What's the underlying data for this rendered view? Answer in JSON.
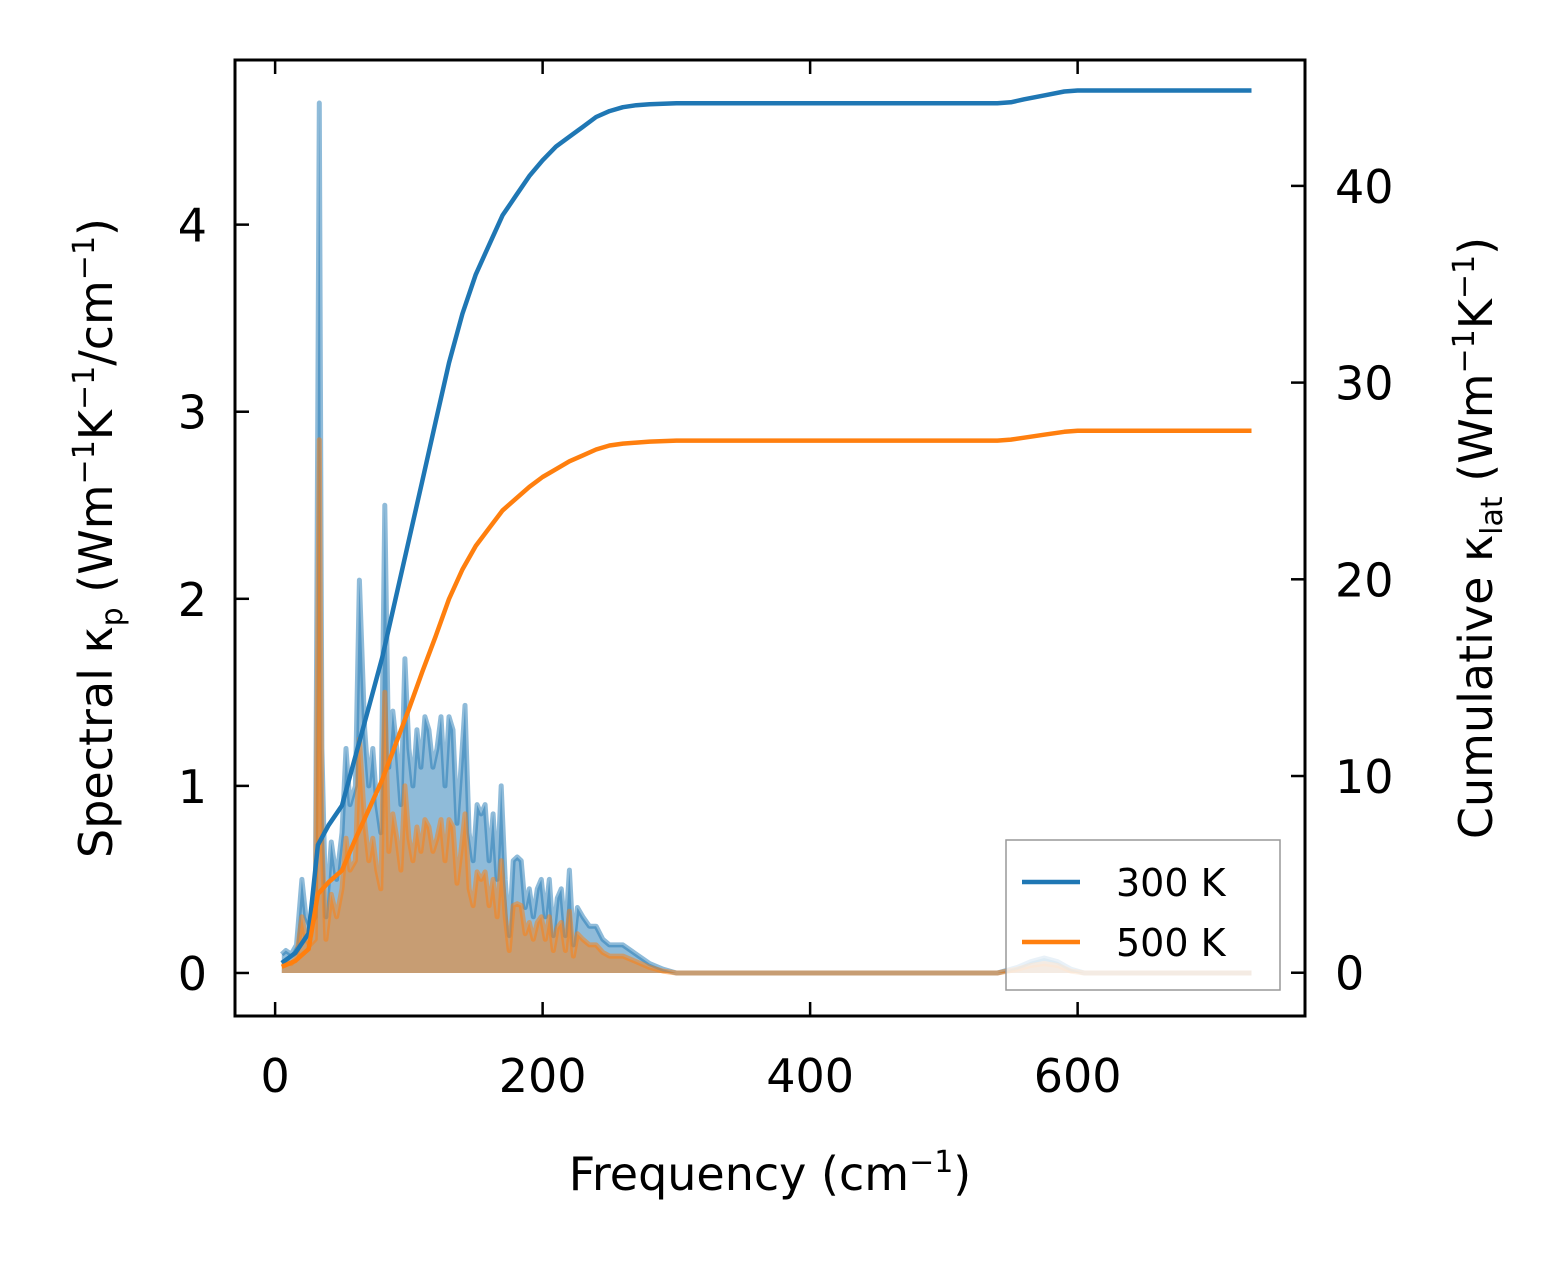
{
  "chart_data": {
    "type": "line",
    "xlabel": "Frequency (cm",
    "xlabel_sup": "−1",
    "xlabel_end": ")",
    "ylabel_left": {
      "a": "Spectral κ",
      "sub": "p",
      "b": " (Wm",
      "sup1": "−1",
      "c": "K",
      "sup2": "−1",
      "d": "/cm",
      "sup3": "−1",
      "e": ")"
    },
    "ylabel_right": {
      "a": "Cumulative κ",
      "sub": "lat",
      "b": " (Wm",
      "sup1": "−1",
      "c": "K",
      "sup2": "−1",
      "d": ")"
    },
    "xlim": [
      -30,
      770
    ],
    "ylim_left": [
      -0.23,
      4.88
    ],
    "ylim_right": [
      -2.2,
      46.4
    ],
    "x_ticks": [
      "0",
      "200",
      "400",
      "600"
    ],
    "y_left_ticks": [
      "0",
      "1",
      "2",
      "3",
      "4"
    ],
    "y_right_ticks": [
      "0",
      "10",
      "20",
      "30",
      "40"
    ],
    "legend_position": "lower-right",
    "colors": {
      "s300": "#1f77b4",
      "s500": "#ff7f0e",
      "fill300": "#1f77b4",
      "fill500": "#ff7f0e"
    },
    "series": [
      {
        "name": "300 K",
        "spectral": [
          [
            5,
            0.1
          ],
          [
            8,
            0.12
          ],
          [
            12,
            0.1
          ],
          [
            16,
            0.15
          ],
          [
            20,
            0.5
          ],
          [
            23,
            0.3
          ],
          [
            26,
            0.25
          ],
          [
            30,
            0.3
          ],
          [
            33,
            4.65
          ],
          [
            35,
            1.2
          ],
          [
            38,
            0.3
          ],
          [
            42,
            0.7
          ],
          [
            46,
            0.5
          ],
          [
            50,
            0.75
          ],
          [
            53,
            1.2
          ],
          [
            56,
            0.9
          ],
          [
            60,
            1.0
          ],
          [
            63,
            2.1
          ],
          [
            67,
            1.3
          ],
          [
            70,
            1.0
          ],
          [
            73,
            1.2
          ],
          [
            76,
            0.9
          ],
          [
            79,
            0.75
          ],
          [
            82,
            2.5
          ],
          [
            85,
            1.1
          ],
          [
            88,
            1.4
          ],
          [
            91,
            1.2
          ],
          [
            94,
            0.9
          ],
          [
            97,
            1.68
          ],
          [
            100,
            1.2
          ],
          [
            103,
            1.0
          ],
          [
            106,
            1.3
          ],
          [
            109,
            1.1
          ],
          [
            112,
            1.37
          ],
          [
            115,
            1.3
          ],
          [
            118,
            1.1
          ],
          [
            121,
            1.2
          ],
          [
            124,
            1.37
          ],
          [
            127,
            1.0
          ],
          [
            130,
            1.37
          ],
          [
            133,
            1.3
          ],
          [
            136,
            0.8
          ],
          [
            139,
            1.1
          ],
          [
            142,
            1.43
          ],
          [
            145,
            0.75
          ],
          [
            148,
            0.6
          ],
          [
            151,
            0.9
          ],
          [
            154,
            0.85
          ],
          [
            157,
            0.9
          ],
          [
            160,
            0.6
          ],
          [
            163,
            0.85
          ],
          [
            166,
            0.5
          ],
          [
            169,
            1.0
          ],
          [
            172,
            0.5
          ],
          [
            175,
            0.2
          ],
          [
            178,
            0.6
          ],
          [
            181,
            0.62
          ],
          [
            184,
            0.6
          ],
          [
            187,
            0.35
          ],
          [
            190,
            0.45
          ],
          [
            193,
            0.3
          ],
          [
            196,
            0.45
          ],
          [
            199,
            0.5
          ],
          [
            202,
            0.3
          ],
          [
            205,
            0.5
          ],
          [
            208,
            0.2
          ],
          [
            211,
            0.4
          ],
          [
            214,
            0.45
          ],
          [
            217,
            0.2
          ],
          [
            220,
            0.55
          ],
          [
            223,
            0.15
          ],
          [
            226,
            0.35
          ],
          [
            230,
            0.3
          ],
          [
            235,
            0.25
          ],
          [
            240,
            0.25
          ],
          [
            245,
            0.18
          ],
          [
            250,
            0.15
          ],
          [
            260,
            0.15
          ],
          [
            270,
            0.1
          ],
          [
            280,
            0.05
          ],
          [
            290,
            0.02
          ],
          [
            300,
            0.0
          ],
          [
            400,
            0.0
          ],
          [
            540,
            0.0
          ],
          [
            555,
            0.03
          ],
          [
            565,
            0.06
          ],
          [
            575,
            0.08
          ],
          [
            585,
            0.06
          ],
          [
            595,
            0.02
          ],
          [
            605,
            0.0
          ],
          [
            730,
            0.0
          ]
        ],
        "cumulative": [
          [
            5,
            0.5
          ],
          [
            15,
            1.0
          ],
          [
            25,
            2.0
          ],
          [
            32,
            6.5
          ],
          [
            40,
            7.5
          ],
          [
            50,
            8.5
          ],
          [
            60,
            11
          ],
          [
            70,
            13.5
          ],
          [
            80,
            16
          ],
          [
            90,
            19
          ],
          [
            100,
            22
          ],
          [
            110,
            25
          ],
          [
            120,
            28
          ],
          [
            130,
            31
          ],
          [
            140,
            33.5
          ],
          [
            150,
            35.5
          ],
          [
            160,
            37
          ],
          [
            170,
            38.5
          ],
          [
            180,
            39.5
          ],
          [
            190,
            40.5
          ],
          [
            200,
            41.3
          ],
          [
            210,
            42
          ],
          [
            220,
            42.5
          ],
          [
            230,
            43
          ],
          [
            240,
            43.5
          ],
          [
            250,
            43.8
          ],
          [
            260,
            44
          ],
          [
            270,
            44.1
          ],
          [
            280,
            44.15
          ],
          [
            300,
            44.2
          ],
          [
            540,
            44.2
          ],
          [
            550,
            44.25
          ],
          [
            560,
            44.4
          ],
          [
            575,
            44.6
          ],
          [
            590,
            44.8
          ],
          [
            600,
            44.85
          ],
          [
            730,
            44.85
          ]
        ]
      },
      {
        "name": "500 K",
        "spectral": [
          [
            5,
            0.05
          ],
          [
            8,
            0.06
          ],
          [
            12,
            0.05
          ],
          [
            16,
            0.08
          ],
          [
            20,
            0.3
          ],
          [
            23,
            0.18
          ],
          [
            26,
            0.15
          ],
          [
            30,
            0.18
          ],
          [
            33,
            2.85
          ],
          [
            35,
            0.7
          ],
          [
            38,
            0.18
          ],
          [
            42,
            0.42
          ],
          [
            46,
            0.3
          ],
          [
            50,
            0.45
          ],
          [
            53,
            0.72
          ],
          [
            56,
            0.55
          ],
          [
            60,
            0.6
          ],
          [
            63,
            1.25
          ],
          [
            67,
            0.8
          ],
          [
            70,
            0.6
          ],
          [
            73,
            0.72
          ],
          [
            76,
            0.55
          ],
          [
            79,
            0.45
          ],
          [
            82,
            1.5
          ],
          [
            85,
            0.65
          ],
          [
            88,
            0.85
          ],
          [
            91,
            0.72
          ],
          [
            94,
            0.55
          ],
          [
            97,
            1.0
          ],
          [
            100,
            0.72
          ],
          [
            103,
            0.6
          ],
          [
            106,
            0.78
          ],
          [
            109,
            0.65
          ],
          [
            112,
            0.82
          ],
          [
            115,
            0.78
          ],
          [
            118,
            0.65
          ],
          [
            121,
            0.72
          ],
          [
            124,
            0.82
          ],
          [
            127,
            0.6
          ],
          [
            130,
            0.82
          ],
          [
            133,
            0.78
          ],
          [
            136,
            0.48
          ],
          [
            139,
            0.65
          ],
          [
            142,
            0.85
          ],
          [
            145,
            0.45
          ],
          [
            148,
            0.36
          ],
          [
            151,
            0.54
          ],
          [
            154,
            0.5
          ],
          [
            157,
            0.54
          ],
          [
            160,
            0.36
          ],
          [
            163,
            0.5
          ],
          [
            166,
            0.3
          ],
          [
            169,
            0.6
          ],
          [
            172,
            0.3
          ],
          [
            175,
            0.12
          ],
          [
            178,
            0.36
          ],
          [
            181,
            0.37
          ],
          [
            184,
            0.36
          ],
          [
            187,
            0.21
          ],
          [
            190,
            0.27
          ],
          [
            193,
            0.18
          ],
          [
            196,
            0.27
          ],
          [
            199,
            0.3
          ],
          [
            202,
            0.18
          ],
          [
            205,
            0.3
          ],
          [
            208,
            0.12
          ],
          [
            211,
            0.24
          ],
          [
            214,
            0.27
          ],
          [
            217,
            0.12
          ],
          [
            220,
            0.33
          ],
          [
            223,
            0.09
          ],
          [
            226,
            0.21
          ],
          [
            230,
            0.18
          ],
          [
            235,
            0.15
          ],
          [
            240,
            0.15
          ],
          [
            245,
            0.11
          ],
          [
            250,
            0.09
          ],
          [
            260,
            0.09
          ],
          [
            270,
            0.06
          ],
          [
            280,
            0.03
          ],
          [
            290,
            0.01
          ],
          [
            300,
            0.0
          ],
          [
            400,
            0.0
          ],
          [
            540,
            0.0
          ],
          [
            555,
            0.02
          ],
          [
            565,
            0.04
          ],
          [
            575,
            0.05
          ],
          [
            585,
            0.04
          ],
          [
            595,
            0.01
          ],
          [
            605,
            0.0
          ],
          [
            730,
            0.0
          ]
        ],
        "cumulative": [
          [
            5,
            0.3
          ],
          [
            15,
            0.6
          ],
          [
            25,
            1.2
          ],
          [
            32,
            4.0
          ],
          [
            40,
            4.6
          ],
          [
            50,
            5.2
          ],
          [
            60,
            6.8
          ],
          [
            70,
            8.3
          ],
          [
            80,
            9.8
          ],
          [
            90,
            11.6
          ],
          [
            100,
            13.4
          ],
          [
            110,
            15.3
          ],
          [
            120,
            17.1
          ],
          [
            130,
            19
          ],
          [
            140,
            20.5
          ],
          [
            150,
            21.7
          ],
          [
            160,
            22.6
          ],
          [
            170,
            23.5
          ],
          [
            180,
            24.1
          ],
          [
            190,
            24.7
          ],
          [
            200,
            25.2
          ],
          [
            210,
            25.6
          ],
          [
            220,
            26
          ],
          [
            230,
            26.3
          ],
          [
            240,
            26.6
          ],
          [
            250,
            26.8
          ],
          [
            260,
            26.9
          ],
          [
            270,
            26.95
          ],
          [
            280,
            27
          ],
          [
            300,
            27.05
          ],
          [
            540,
            27.05
          ],
          [
            550,
            27.1
          ],
          [
            560,
            27.2
          ],
          [
            575,
            27.35
          ],
          [
            590,
            27.5
          ],
          [
            600,
            27.55
          ],
          [
            730,
            27.55
          ]
        ]
      }
    ]
  }
}
